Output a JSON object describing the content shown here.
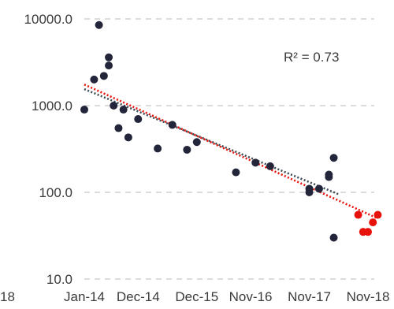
{
  "chart_data": {
    "type": "scatter",
    "y_scale": "log",
    "ylim": [
      10,
      10000
    ],
    "xlim": [
      "2013-11",
      "2019-01"
    ],
    "grid": "horizontal-dashed",
    "yticks": [
      "10000.0",
      "1000.0",
      "100.0",
      "10.0"
    ],
    "ytick_values": [
      10000,
      1000,
      100,
      10
    ],
    "xticks": [
      "Jan-14",
      "Dec-14",
      "Dec-15",
      "Nov-16",
      "Nov-17",
      "Nov-18"
    ],
    "xtick_dates": [
      "2014-01",
      "2014-12",
      "2015-12",
      "2016-11",
      "2017-11",
      "2018-11"
    ],
    "left_clipped_tick": "18",
    "annotation": "R² = 0.73",
    "colors": {
      "dark": "#23253a",
      "red": "#e8120c",
      "dark_trend": "#3c4a52",
      "red_trend": "#e8120c",
      "grid": "#c8c8c8"
    },
    "series": [
      {
        "color": "dark",
        "points": [
          [
            "2014-01-01",
            900
          ],
          [
            "2014-03-01",
            2000
          ],
          [
            "2014-04-01",
            8500
          ],
          [
            "2014-05-01",
            2200
          ],
          [
            "2014-06-01",
            3600
          ],
          [
            "2014-06-01",
            2900
          ],
          [
            "2014-07-01",
            1000
          ],
          [
            "2014-08-01",
            550
          ],
          [
            "2014-09-01",
            900
          ],
          [
            "2014-10-01",
            430
          ],
          [
            "2014-12-01",
            700
          ],
          [
            "2015-04-01",
            320
          ],
          [
            "2015-07-01",
            600
          ],
          [
            "2015-10-01",
            310
          ],
          [
            "2015-12-01",
            380
          ],
          [
            "2016-08-01",
            170
          ],
          [
            "2016-12-01",
            220
          ],
          [
            "2017-03-01",
            200
          ],
          [
            "2017-11-01",
            110
          ],
          [
            "2017-11-01",
            100
          ],
          [
            "2018-01-01",
            110
          ],
          [
            "2018-03-01",
            150
          ],
          [
            "2018-03-01",
            160
          ],
          [
            "2018-04-01",
            250
          ],
          [
            "2018-04-01",
            30
          ]
        ],
        "trend": [
          [
            "2014-01-01",
            1550
          ],
          [
            "2018-05-01",
            95
          ]
        ]
      },
      {
        "color": "red",
        "points": [
          [
            "2018-09-01",
            55
          ],
          [
            "2018-10-01",
            35
          ],
          [
            "2018-11-01",
            35
          ],
          [
            "2018-12-01",
            45
          ],
          [
            "2019-01-01",
            55
          ]
        ],
        "trend": [
          [
            "2014-01-01",
            1750
          ],
          [
            "2019-01-01",
            50
          ]
        ]
      }
    ]
  }
}
